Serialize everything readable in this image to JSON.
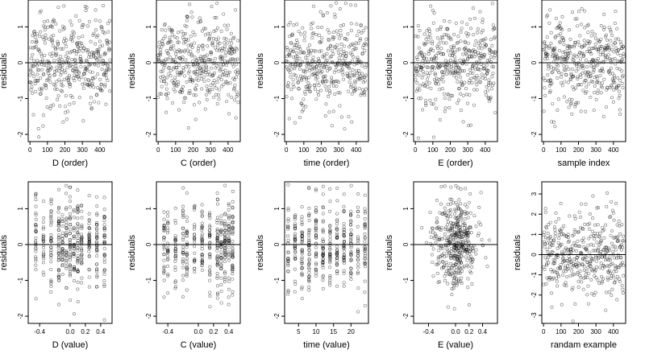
{
  "chart_data": [
    {
      "type": "scatter",
      "xlabel": "D (order)",
      "ylabel": "residuals",
      "xlim": [
        -10,
        470
      ],
      "ylim": [
        -2.2,
        1.75
      ],
      "xticks": [
        0,
        100,
        200,
        300,
        400
      ],
      "yticks": [
        -2,
        -1,
        0,
        1
      ],
      "reference_line": 0,
      "series": [
        {
          "name": "",
          "x_distribution": "uniform",
          "n_points": 420,
          "seed": 11,
          "y_sd": 0.62
        }
      ]
    },
    {
      "type": "scatter",
      "xlabel": "C (order)",
      "ylabel": "residuals",
      "xlim": [
        -10,
        470
      ],
      "ylim": [
        -2.2,
        1.75
      ],
      "xticks": [
        0,
        100,
        200,
        300,
        400
      ],
      "yticks": [
        -2,
        -1,
        0,
        1
      ],
      "reference_line": 0,
      "series": [
        {
          "name": "",
          "x_distribution": "uniform",
          "n_points": 420,
          "seed": 23,
          "y_sd": 0.62
        }
      ]
    },
    {
      "type": "scatter",
      "xlabel": "time (order)",
      "ylabel": "residuals",
      "xlim": [
        -10,
        470
      ],
      "ylim": [
        -2.2,
        1.75
      ],
      "xticks": [
        0,
        100,
        200,
        300,
        400
      ],
      "yticks": [
        -2,
        -1,
        0,
        1
      ],
      "reference_line": 0,
      "series": [
        {
          "name": "",
          "x_distribution": "uniform",
          "n_points": 420,
          "seed": 37,
          "y_sd": 0.62
        }
      ]
    },
    {
      "type": "scatter",
      "xlabel": "E (order)",
      "ylabel": "residuals",
      "xlim": [
        -10,
        470
      ],
      "ylim": [
        -2.2,
        1.75
      ],
      "xticks": [
        0,
        100,
        200,
        300,
        400
      ],
      "yticks": [
        -2,
        -1,
        0,
        1
      ],
      "reference_line": 0,
      "series": [
        {
          "name": "",
          "x_distribution": "uniform",
          "n_points": 420,
          "seed": 41,
          "y_sd": 0.62
        }
      ]
    },
    {
      "type": "scatter",
      "xlabel": "sample index",
      "ylabel": "residuals",
      "xlim": [
        -10,
        470
      ],
      "ylim": [
        -2.2,
        1.75
      ],
      "xticks": [
        0,
        100,
        200,
        300,
        400
      ],
      "yticks": [
        -2,
        -1,
        0,
        1
      ],
      "reference_line": 0,
      "series": [
        {
          "name": "",
          "x_distribution": "uniform",
          "n_points": 420,
          "seed": 53,
          "y_sd": 0.62
        }
      ]
    },
    {
      "type": "scatter",
      "xlabel": "D (value)",
      "ylabel": "residuals",
      "xlim": [
        -0.55,
        0.55
      ],
      "ylim": [
        -2.2,
        1.75
      ],
      "xticks": [
        -0.4,
        0.0,
        0.2,
        0.4
      ],
      "xtick_labels": [
        "-0.4",
        "0.0",
        "0.2",
        "0.4"
      ],
      "yticks": [
        -2,
        -1,
        0,
        1
      ],
      "reference_line": 0,
      "series": [
        {
          "name": "",
          "x_distribution": "discrete",
          "x_levels": [
            -0.45,
            -0.35,
            -0.25,
            -0.15,
            -0.1,
            -0.05,
            0.0,
            0.05,
            0.1,
            0.15,
            0.25,
            0.35,
            0.45
          ],
          "n_points": 420,
          "seed": 61,
          "y_sd": 0.62
        }
      ]
    },
    {
      "type": "scatter",
      "xlabel": "C (value)",
      "ylabel": "residuals",
      "xlim": [
        -0.55,
        0.55
      ],
      "ylim": [
        -2.2,
        1.75
      ],
      "xticks": [
        -0.4,
        0.0,
        0.2,
        0.4
      ],
      "xtick_labels": [
        "-0.4",
        "0.0",
        "0.2",
        "0.4"
      ],
      "yticks": [
        -2,
        -1,
        0,
        1
      ],
      "reference_line": 0,
      "series": [
        {
          "name": "",
          "x_distribution": "discrete",
          "x_levels": [
            -0.45,
            -0.4,
            -0.3,
            -0.2,
            -0.15,
            -0.05,
            0.05,
            0.15,
            0.25,
            0.3,
            0.35,
            0.4,
            0.45
          ],
          "n_points": 420,
          "seed": 67,
          "y_sd": 0.62
        }
      ]
    },
    {
      "type": "scatter",
      "xlabel": "time (value)",
      "ylabel": "residuals",
      "xlim": [
        1,
        25
      ],
      "ylim": [
        -2.2,
        1.75
      ],
      "xticks": [
        5,
        10,
        15,
        20
      ],
      "yticks": [
        -2,
        -1,
        0,
        1
      ],
      "reference_line": 0,
      "series": [
        {
          "name": "",
          "x_distribution": "discrete",
          "x_levels": [
            2,
            4,
            6,
            8,
            10,
            12,
            14,
            16,
            18,
            20,
            22,
            24
          ],
          "n_points": 420,
          "seed": 71,
          "y_sd": 0.62
        }
      ]
    },
    {
      "type": "scatter",
      "xlabel": "E (value)",
      "ylabel": "residuals",
      "xlim": [
        -0.62,
        0.62
      ],
      "ylim": [
        -2.2,
        1.75
      ],
      "xticks": [
        -0.4,
        0.0,
        0.2,
        0.4
      ],
      "xtick_labels": [
        "-0.4",
        "0.0",
        "0.2",
        "0.4"
      ],
      "yticks": [
        -2,
        -1,
        0,
        1
      ],
      "reference_line": 0,
      "series": [
        {
          "name": "",
          "x_distribution": "centered",
          "x_sd": 0.17,
          "n_points": 420,
          "seed": 79,
          "y_sd": 0.62
        }
      ]
    },
    {
      "type": "scatter",
      "xlabel": "randam example",
      "ylabel": "residuals",
      "xlim": [
        -10,
        470
      ],
      "ylim": [
        -3.4,
        3.6
      ],
      "xticks": [
        0,
        100,
        200,
        300,
        400
      ],
      "yticks": [
        -3,
        -2,
        -1,
        0,
        1,
        2,
        3
      ],
      "reference_line": 0,
      "series": [
        {
          "name": "",
          "x_distribution": "uniform",
          "n_points": 420,
          "seed": 83,
          "y_sd": 1.0
        }
      ]
    }
  ]
}
